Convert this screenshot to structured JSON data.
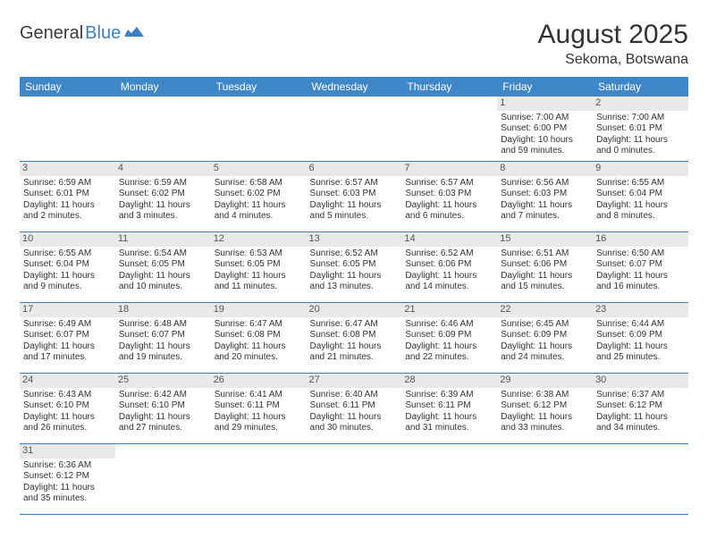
{
  "logo": {
    "general": "General",
    "blue": "Blue"
  },
  "title": {
    "month": "August 2025",
    "location": "Sekoma, Botswana"
  },
  "colors": {
    "header_bg": "#3f87c7",
    "header_fg": "#ffffff",
    "daynum_bg": "#e9e9e9",
    "border": "#3f7fbf",
    "text": "#333333",
    "logo_gray": "#3a3a3a",
    "logo_blue": "#3f7fbf"
  },
  "weekdays": [
    "Sunday",
    "Monday",
    "Tuesday",
    "Wednesday",
    "Thursday",
    "Friday",
    "Saturday"
  ],
  "weeks": [
    [
      null,
      null,
      null,
      null,
      null,
      {
        "n": "1",
        "sr": "7:00 AM",
        "ss": "6:00 PM",
        "dl": "10 hours and 59 minutes."
      },
      {
        "n": "2",
        "sr": "7:00 AM",
        "ss": "6:01 PM",
        "dl": "11 hours and 0 minutes."
      }
    ],
    [
      {
        "n": "3",
        "sr": "6:59 AM",
        "ss": "6:01 PM",
        "dl": "11 hours and 2 minutes."
      },
      {
        "n": "4",
        "sr": "6:59 AM",
        "ss": "6:02 PM",
        "dl": "11 hours and 3 minutes."
      },
      {
        "n": "5",
        "sr": "6:58 AM",
        "ss": "6:02 PM",
        "dl": "11 hours and 4 minutes."
      },
      {
        "n": "6",
        "sr": "6:57 AM",
        "ss": "6:03 PM",
        "dl": "11 hours and 5 minutes."
      },
      {
        "n": "7",
        "sr": "6:57 AM",
        "ss": "6:03 PM",
        "dl": "11 hours and 6 minutes."
      },
      {
        "n": "8",
        "sr": "6:56 AM",
        "ss": "6:03 PM",
        "dl": "11 hours and 7 minutes."
      },
      {
        "n": "9",
        "sr": "6:55 AM",
        "ss": "6:04 PM",
        "dl": "11 hours and 8 minutes."
      }
    ],
    [
      {
        "n": "10",
        "sr": "6:55 AM",
        "ss": "6:04 PM",
        "dl": "11 hours and 9 minutes."
      },
      {
        "n": "11",
        "sr": "6:54 AM",
        "ss": "6:05 PM",
        "dl": "11 hours and 10 minutes."
      },
      {
        "n": "12",
        "sr": "6:53 AM",
        "ss": "6:05 PM",
        "dl": "11 hours and 11 minutes."
      },
      {
        "n": "13",
        "sr": "6:52 AM",
        "ss": "6:05 PM",
        "dl": "11 hours and 13 minutes."
      },
      {
        "n": "14",
        "sr": "6:52 AM",
        "ss": "6:06 PM",
        "dl": "11 hours and 14 minutes."
      },
      {
        "n": "15",
        "sr": "6:51 AM",
        "ss": "6:06 PM",
        "dl": "11 hours and 15 minutes."
      },
      {
        "n": "16",
        "sr": "6:50 AM",
        "ss": "6:07 PM",
        "dl": "11 hours and 16 minutes."
      }
    ],
    [
      {
        "n": "17",
        "sr": "6:49 AM",
        "ss": "6:07 PM",
        "dl": "11 hours and 17 minutes."
      },
      {
        "n": "18",
        "sr": "6:48 AM",
        "ss": "6:07 PM",
        "dl": "11 hours and 19 minutes."
      },
      {
        "n": "19",
        "sr": "6:47 AM",
        "ss": "6:08 PM",
        "dl": "11 hours and 20 minutes."
      },
      {
        "n": "20",
        "sr": "6:47 AM",
        "ss": "6:08 PM",
        "dl": "11 hours and 21 minutes."
      },
      {
        "n": "21",
        "sr": "6:46 AM",
        "ss": "6:09 PM",
        "dl": "11 hours and 22 minutes."
      },
      {
        "n": "22",
        "sr": "6:45 AM",
        "ss": "6:09 PM",
        "dl": "11 hours and 24 minutes."
      },
      {
        "n": "23",
        "sr": "6:44 AM",
        "ss": "6:09 PM",
        "dl": "11 hours and 25 minutes."
      }
    ],
    [
      {
        "n": "24",
        "sr": "6:43 AM",
        "ss": "6:10 PM",
        "dl": "11 hours and 26 minutes."
      },
      {
        "n": "25",
        "sr": "6:42 AM",
        "ss": "6:10 PM",
        "dl": "11 hours and 27 minutes."
      },
      {
        "n": "26",
        "sr": "6:41 AM",
        "ss": "6:11 PM",
        "dl": "11 hours and 29 minutes."
      },
      {
        "n": "27",
        "sr": "6:40 AM",
        "ss": "6:11 PM",
        "dl": "11 hours and 30 minutes."
      },
      {
        "n": "28",
        "sr": "6:39 AM",
        "ss": "6:11 PM",
        "dl": "11 hours and 31 minutes."
      },
      {
        "n": "29",
        "sr": "6:38 AM",
        "ss": "6:12 PM",
        "dl": "11 hours and 33 minutes."
      },
      {
        "n": "30",
        "sr": "6:37 AM",
        "ss": "6:12 PM",
        "dl": "11 hours and 34 minutes."
      }
    ],
    [
      {
        "n": "31",
        "sr": "6:36 AM",
        "ss": "6:12 PM",
        "dl": "11 hours and 35 minutes."
      },
      null,
      null,
      null,
      null,
      null,
      null
    ]
  ],
  "labels": {
    "sunrise": "Sunrise: ",
    "sunset": "Sunset: ",
    "daylight": "Daylight: "
  }
}
